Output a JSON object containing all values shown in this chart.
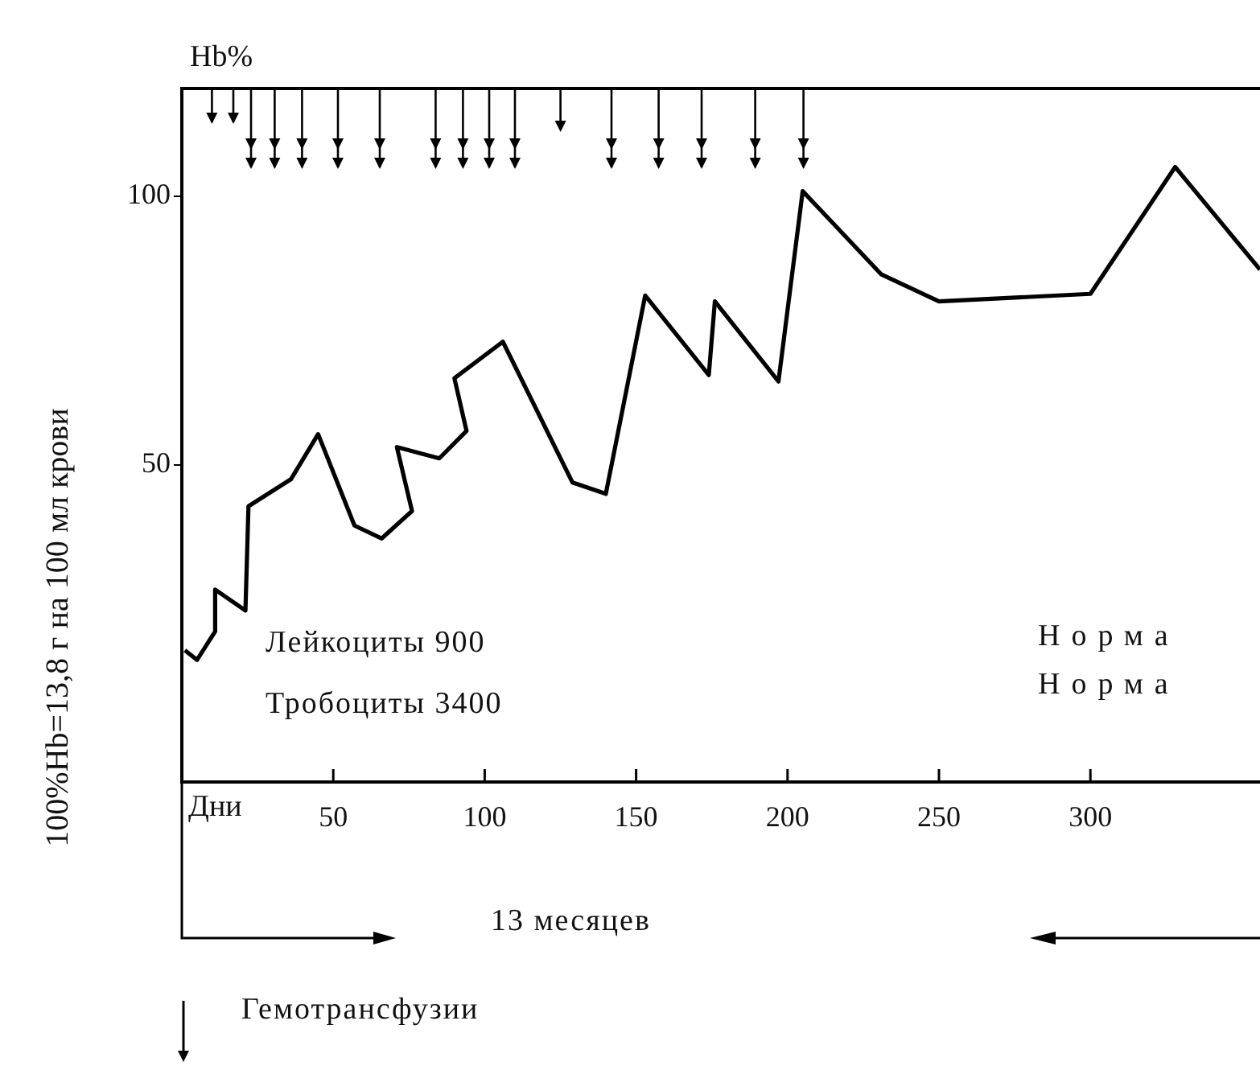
{
  "chart_data": {
    "type": "line",
    "xlabel": "Дни",
    "ylabel": "100%Hb=13,8 г на 100 мл крови",
    "series": [
      {
        "color": "#000000",
        "x": [
          1,
          5,
          11,
          11,
          21,
          22,
          36,
          45,
          57,
          66,
          76,
          71,
          85,
          94,
          90,
          106,
          129,
          140,
          153,
          174,
          176,
          197,
          205,
          231,
          250,
          300,
          328,
          356
        ],
        "values": [
          15.5,
          13.7,
          19,
          26.8,
          22.9,
          42.3,
          47.3,
          55.7,
          38.7,
          36.3,
          41.4,
          53.3,
          51.2,
          56.3,
          66.1,
          72.9,
          46.7,
          44.6,
          81.5,
          66.7,
          80.4,
          65.5,
          100.9,
          85.4,
          80.4,
          81.8,
          105.4,
          86.3
        ]
      }
    ],
    "xlim": [
      0,
      356
    ],
    "ylim": [
      -9,
      120
    ],
    "xticks": [
      50,
      100,
      150,
      200,
      250,
      300
    ],
    "yticks": [
      50,
      100
    ],
    "marker": "none",
    "line_style": "solid",
    "annotations": [
      "Hb%",
      "Лейкоциты 900",
      "Тробоциты 3400",
      "Норма",
      "Норма",
      "13 месяцев",
      "Гемотрансфузии"
    ]
  }
}
